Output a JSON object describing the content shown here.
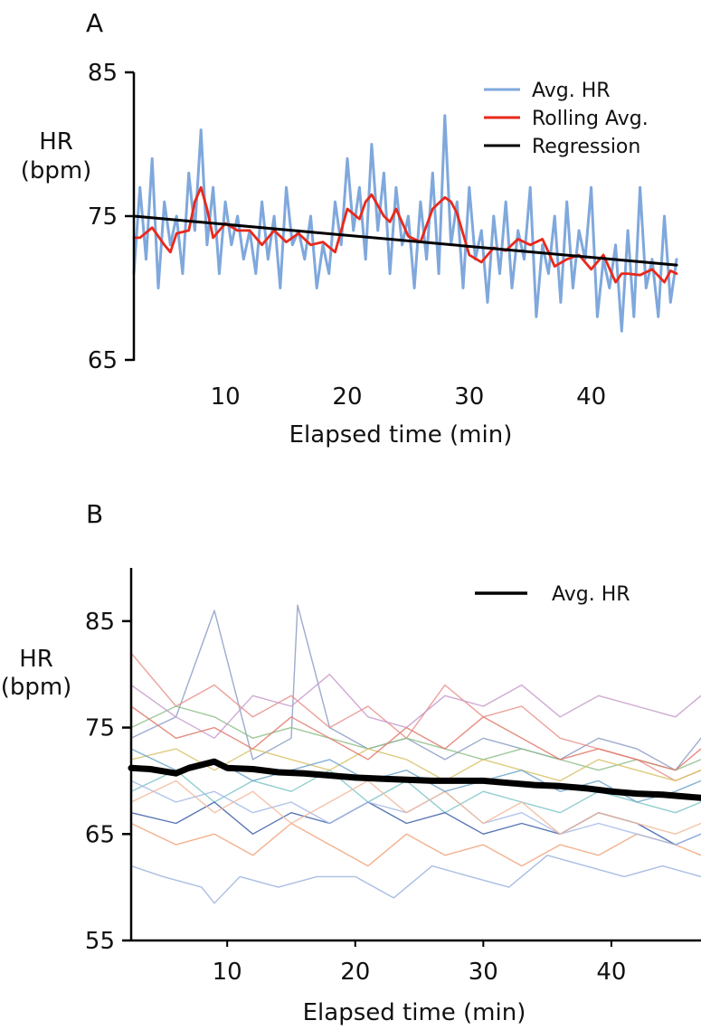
{
  "chart_data": [
    {
      "panel": "A",
      "type": "line",
      "ylabel": "HR",
      "ylabel_unit": "(bpm)",
      "xlabel": "Elapsed time (min)",
      "xlim": [
        2.5,
        47
      ],
      "ylim": [
        65,
        85
      ],
      "xticks": [
        "10",
        "20",
        "30",
        "40"
      ],
      "yticks": [
        "65",
        "75",
        "85"
      ],
      "legend_position": "top-right",
      "series": [
        {
          "name": "Avg. HR",
          "color": "#7fa8dc",
          "x": [
            2.5,
            3,
            3.5,
            4,
            4.5,
            5,
            5.5,
            6,
            6.5,
            7,
            7.5,
            8,
            8.5,
            9,
            9.5,
            10,
            10.5,
            11,
            11.5,
            12,
            12.5,
            13,
            13.5,
            14,
            14.5,
            15,
            15.5,
            16,
            16.5,
            17,
            17.5,
            18,
            18.5,
            19,
            19.5,
            20,
            20.5,
            21,
            21.5,
            22,
            22.5,
            23,
            23.5,
            24,
            24.5,
            25,
            25.5,
            26,
            26.5,
            27,
            27.5,
            28,
            28.5,
            29,
            29.5,
            30,
            30.5,
            31,
            31.5,
            32,
            32.5,
            33,
            33.5,
            34,
            34.5,
            35,
            35.5,
            36,
            36.5,
            37,
            37.5,
            38,
            38.5,
            39,
            39.5,
            40,
            40.5,
            41,
            41.5,
            42,
            42.5,
            43,
            43.5,
            44,
            44.5,
            45,
            45.5,
            46,
            46.5,
            47
          ],
          "values": [
            71,
            77,
            72,
            79,
            70,
            76,
            73,
            75,
            71,
            78,
            74,
            81,
            73,
            77,
            71,
            76,
            73,
            75,
            72,
            74,
            71,
            76,
            72,
            75,
            70,
            77,
            73,
            74,
            72,
            75,
            70,
            73,
            71,
            76,
            73,
            79,
            74,
            77,
            72,
            80,
            74,
            78,
            71,
            77,
            73,
            75,
            70,
            76,
            72,
            78,
            71,
            82,
            73,
            76,
            70,
            77,
            72,
            74,
            69,
            75,
            71,
            76,
            70,
            74,
            72,
            77,
            68,
            73,
            71,
            75,
            69,
            76,
            70,
            74,
            72,
            77,
            68,
            72,
            70,
            73,
            67,
            74,
            68,
            77,
            70,
            72,
            68,
            75,
            69,
            72
          ]
        },
        {
          "name": "Rolling Avg.",
          "color": "#e8291c",
          "x": [
            2.5,
            3,
            4,
            5,
            5.5,
            6,
            7,
            7.5,
            8,
            8.5,
            9,
            9.5,
            10,
            11,
            12,
            13,
            13.5,
            14,
            15,
            16,
            17,
            18,
            19,
            20,
            21,
            21.5,
            22,
            23,
            23.5,
            24,
            25,
            26,
            27,
            28,
            28.5,
            29,
            30,
            31,
            32,
            33,
            34,
            35,
            36,
            36.5,
            37,
            38,
            39,
            40,
            41,
            42,
            42.5,
            43,
            44,
            45,
            46,
            46.5,
            47
          ],
          "values": [
            73.5,
            73.5,
            74.2,
            73,
            72.5,
            73.8,
            74,
            76,
            77,
            75.5,
            73.5,
            74,
            74.5,
            74,
            74,
            73,
            73.5,
            74,
            73.2,
            73.8,
            73,
            73.2,
            72.5,
            75.5,
            74.8,
            76,
            76.5,
            75,
            74.6,
            75.5,
            73.6,
            73.2,
            75.5,
            76.3,
            76,
            75.2,
            72.3,
            71.8,
            72.8,
            72.6,
            73.4,
            73,
            73.4,
            72.5,
            71.5,
            72,
            72.3,
            71.3,
            72.3,
            70.4,
            71,
            71,
            70.9,
            71.3,
            70.4,
            71.2,
            71
          ]
        },
        {
          "name": "Regression",
          "color": "#000000",
          "x": [
            2.5,
            47
          ],
          "values": [
            75.0,
            71.6
          ]
        }
      ]
    },
    {
      "panel": "B",
      "type": "line",
      "ylabel": "HR",
      "ylabel_unit": "(bpm)",
      "xlabel": "Elapsed time (min)",
      "xlim": [
        2.5,
        47
      ],
      "ylim": [
        55,
        90
      ],
      "xticks": [
        "10",
        "20",
        "30",
        "40"
      ],
      "yticks": [
        "55",
        "65",
        "75",
        "85"
      ],
      "legend_position": "top-right",
      "series": [
        {
          "name": "Avg. HR",
          "color": "#000000",
          "x": [
            2.5,
            4,
            6,
            7,
            9,
            10,
            12,
            14,
            16,
            18,
            20,
            22,
            24,
            26,
            28,
            30,
            32,
            34,
            36,
            38,
            40,
            42,
            44,
            46,
            47
          ],
          "values": [
            71.2,
            71.1,
            70.7,
            71.2,
            71.8,
            71.2,
            71.1,
            70.8,
            70.7,
            70.5,
            70.3,
            70.2,
            70.1,
            70.0,
            70.0,
            70.0,
            69.8,
            69.6,
            69.5,
            69.3,
            69.0,
            68.8,
            68.7,
            68.5,
            68.4
          ]
        },
        {
          "name": "",
          "color": "#8c9cc4",
          "x": [
            2.5,
            6,
            9,
            12,
            15,
            15.5,
            18,
            21,
            24,
            27,
            30,
            33,
            36,
            39,
            42,
            45,
            47
          ],
          "values": [
            74,
            76,
            86,
            72,
            74,
            86.5,
            75,
            73,
            74,
            72,
            74,
            73,
            72,
            74,
            73,
            71,
            74
          ]
        },
        {
          "name": "",
          "color": "#e8908a",
          "x": [
            2.5,
            6,
            9,
            12,
            15,
            18,
            21,
            24,
            27,
            30,
            33,
            36,
            39,
            42,
            45,
            47
          ],
          "values": [
            82,
            77,
            79,
            76,
            78,
            75,
            77,
            74,
            79,
            76,
            77,
            74,
            73,
            72,
            70,
            71
          ]
        },
        {
          "name": "",
          "color": "#9bb3dd",
          "x": [
            2.5,
            5,
            8,
            9,
            11,
            14,
            17,
            20,
            23,
            26,
            29,
            32,
            35,
            38,
            41,
            44,
            47
          ],
          "values": [
            62,
            61,
            60,
            58.5,
            61,
            60,
            61,
            61,
            59,
            62,
            61,
            60,
            63,
            62,
            61,
            62,
            61
          ]
        },
        {
          "name": "",
          "color": "#f0a47a",
          "x": [
            2.5,
            6,
            9,
            12,
            15,
            18,
            21,
            24,
            27,
            30,
            33,
            36,
            39,
            42,
            45,
            47
          ],
          "values": [
            66,
            64,
            65,
            63,
            66,
            64,
            62,
            65,
            63,
            64,
            62,
            64,
            63,
            65,
            64,
            63
          ]
        },
        {
          "name": "",
          "color": "#8fc08a",
          "x": [
            2.5,
            6,
            9,
            12,
            15,
            18,
            21,
            24,
            27,
            30,
            33,
            36,
            39,
            42,
            45,
            47
          ],
          "values": [
            75,
            77,
            76,
            74,
            75,
            74,
            73,
            74,
            73,
            72,
            73,
            72,
            71,
            72,
            71,
            72
          ]
        },
        {
          "name": "",
          "color": "#c79acb",
          "x": [
            2.5,
            6,
            9,
            12,
            15,
            18,
            21,
            24,
            27,
            30,
            33,
            36,
            39,
            42,
            45,
            47
          ],
          "values": [
            79,
            76,
            74,
            78,
            77,
            80,
            76,
            75,
            78,
            77,
            79,
            76,
            78,
            77,
            76,
            78
          ]
        },
        {
          "name": "",
          "color": "#7cc5c8",
          "x": [
            2.5,
            6,
            9,
            12,
            15,
            18,
            21,
            24,
            27,
            30,
            33,
            36,
            39,
            42,
            45,
            47
          ],
          "values": [
            69,
            71,
            68,
            70,
            69,
            71,
            68,
            70,
            67,
            69,
            68,
            67,
            69,
            68,
            67,
            68
          ]
        },
        {
          "name": "",
          "color": "#3c5fa8",
          "x": [
            2.5,
            6,
            9,
            12,
            15,
            18,
            21,
            24,
            27,
            30,
            33,
            36,
            39,
            42,
            45,
            47
          ],
          "values": [
            67,
            66,
            68,
            65,
            67,
            66,
            68,
            66,
            67,
            65,
            66,
            65,
            67,
            66,
            64,
            65
          ]
        },
        {
          "name": "",
          "color": "#d9c26a",
          "x": [
            2.5,
            6,
            9,
            12,
            15,
            18,
            21,
            24,
            27,
            30,
            33,
            36,
            39,
            42,
            45,
            47
          ],
          "values": [
            72,
            73,
            71,
            73,
            72,
            71,
            73,
            72,
            70,
            72,
            71,
            70,
            72,
            71,
            70,
            71
          ]
        },
        {
          "name": "",
          "color": "#e07a6c",
          "x": [
            2.5,
            6,
            9,
            12,
            15,
            18,
            21,
            24,
            27,
            30,
            33,
            36,
            39,
            42,
            45,
            47
          ],
          "values": [
            77,
            74,
            75,
            73,
            76,
            74,
            72,
            75,
            73,
            76,
            74,
            72,
            73,
            72,
            71,
            73
          ]
        },
        {
          "name": "",
          "color": "#a5b9e6",
          "x": [
            2.5,
            6,
            9,
            12,
            15,
            18,
            21,
            24,
            27,
            30,
            33,
            36,
            39,
            42,
            45,
            47
          ],
          "values": [
            70,
            68,
            69,
            67,
            68,
            66,
            68,
            67,
            69,
            66,
            67,
            65,
            66,
            65,
            64,
            65
          ]
        },
        {
          "name": "",
          "color": "#f2b89a",
          "x": [
            2.5,
            6,
            9,
            12,
            15,
            18,
            21,
            24,
            27,
            30,
            33,
            36,
            39,
            42,
            45,
            47
          ],
          "values": [
            68,
            70,
            67,
            69,
            66,
            68,
            70,
            67,
            69,
            66,
            68,
            65,
            67,
            66,
            65,
            66
          ]
        },
        {
          "name": "",
          "color": "#6fa4c9",
          "x": [
            2.5,
            6,
            9,
            12,
            15,
            18,
            21,
            24,
            27,
            30,
            33,
            36,
            39,
            42,
            45,
            47
          ],
          "values": [
            73,
            71,
            72,
            70,
            71,
            72,
            70,
            71,
            69,
            70,
            71,
            69,
            70,
            68,
            69,
            70
          ]
        }
      ]
    }
  ]
}
